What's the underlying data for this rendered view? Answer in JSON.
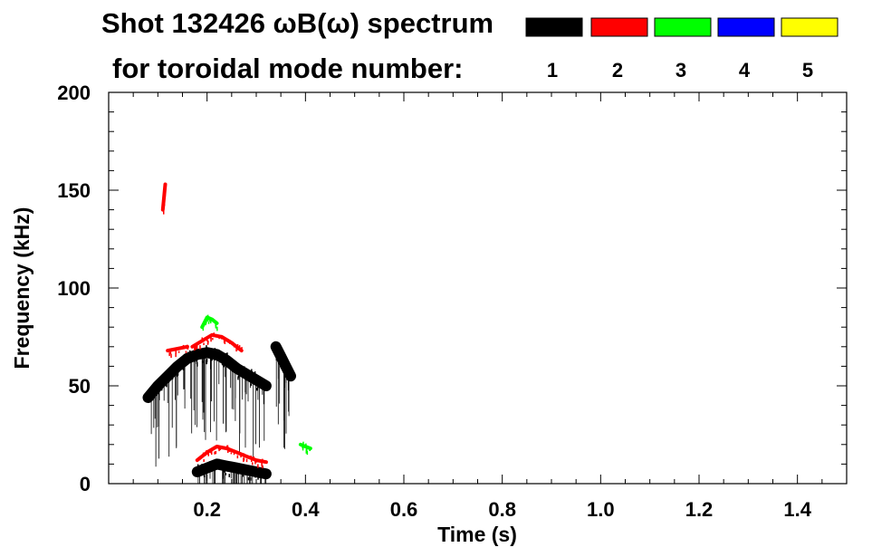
{
  "chart_data": {
    "type": "heatmap",
    "title_line1": "Shot 132426 ωB(ω) spectrum",
    "title_line2": "for toroidal mode number:",
    "xlabel": "Time (s)",
    "ylabel": "Frequency (kHz)",
    "xlim": [
      0.0,
      1.5
    ],
    "ylim": [
      0,
      200
    ],
    "x_ticks": [
      0.2,
      0.4,
      0.6,
      0.8,
      1.0,
      1.2,
      1.4
    ],
    "x_tick_labels": [
      "0.2",
      "0.4",
      "0.6",
      "0.8",
      "1.0",
      "1.2",
      "1.4"
    ],
    "y_ticks": [
      0,
      50,
      100,
      150,
      200
    ],
    "y_tick_labels": [
      "0",
      "50",
      "100",
      "150",
      "200"
    ],
    "legend": [
      {
        "mode": "1",
        "color": "#000000"
      },
      {
        "mode": "2",
        "color": "#ff0000"
      },
      {
        "mode": "3",
        "color": "#00ff00"
      },
      {
        "mode": "4",
        "color": "#0000ff"
      },
      {
        "mode": "5",
        "color": "#ffff00"
      }
    ],
    "features": [
      {
        "mode": "1",
        "t": [
          0.08,
          0.1,
          0.12,
          0.14,
          0.16
        ],
        "f": [
          44,
          50,
          55,
          60,
          64
        ]
      },
      {
        "mode": "1",
        "t": [
          0.16,
          0.18,
          0.2,
          0.22,
          0.24,
          0.26,
          0.28,
          0.3,
          0.32
        ],
        "f": [
          64,
          66,
          67,
          66,
          63,
          59,
          56,
          53,
          50
        ]
      },
      {
        "mode": "1",
        "t": [
          0.34,
          0.35,
          0.36,
          0.37
        ],
        "f": [
          70,
          65,
          60,
          55
        ]
      },
      {
        "mode": "1",
        "t": [
          0.18,
          0.2,
          0.22,
          0.24,
          0.26,
          0.28,
          0.3,
          0.32
        ],
        "f": [
          6,
          8,
          10,
          9,
          8,
          7,
          6,
          5
        ]
      },
      {
        "mode": "2",
        "t": [
          0.12,
          0.14,
          0.16
        ],
        "f": [
          68,
          69,
          70
        ]
      },
      {
        "mode": "2",
        "t": [
          0.17,
          0.19,
          0.21,
          0.23,
          0.25,
          0.27
        ],
        "f": [
          70,
          73,
          76,
          75,
          72,
          68
        ]
      },
      {
        "mode": "2",
        "t": [
          0.18,
          0.2,
          0.22,
          0.24,
          0.26,
          0.28,
          0.3,
          0.32
        ],
        "f": [
          12,
          16,
          19,
          18,
          16,
          14,
          12,
          11
        ]
      },
      {
        "mode": "2",
        "t": [
          0.11,
          0.115
        ],
        "f": [
          140,
          153
        ]
      },
      {
        "mode": "3",
        "t": [
          0.19,
          0.2,
          0.21,
          0.22
        ],
        "f": [
          80,
          85,
          84,
          82
        ]
      },
      {
        "mode": "3",
        "t": [
          0.39,
          0.4,
          0.41
        ],
        "f": [
          20,
          19,
          18
        ]
      }
    ]
  }
}
